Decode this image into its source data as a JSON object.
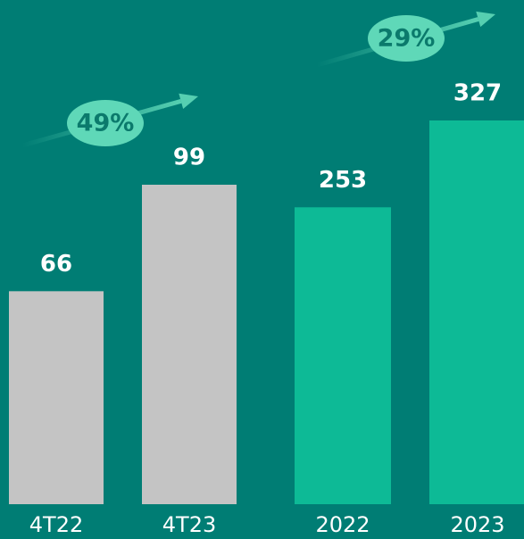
{
  "chart_data": [
    {
      "type": "bar",
      "categories": [
        "4T22",
        "4T23"
      ],
      "values": [
        66,
        99
      ],
      "color": "#c4c4c4",
      "annotation": "49%"
    },
    {
      "type": "bar",
      "categories": [
        "2022",
        "2023"
      ],
      "values": [
        253,
        327
      ],
      "color": "#0dba96",
      "annotation": "29%"
    }
  ]
}
